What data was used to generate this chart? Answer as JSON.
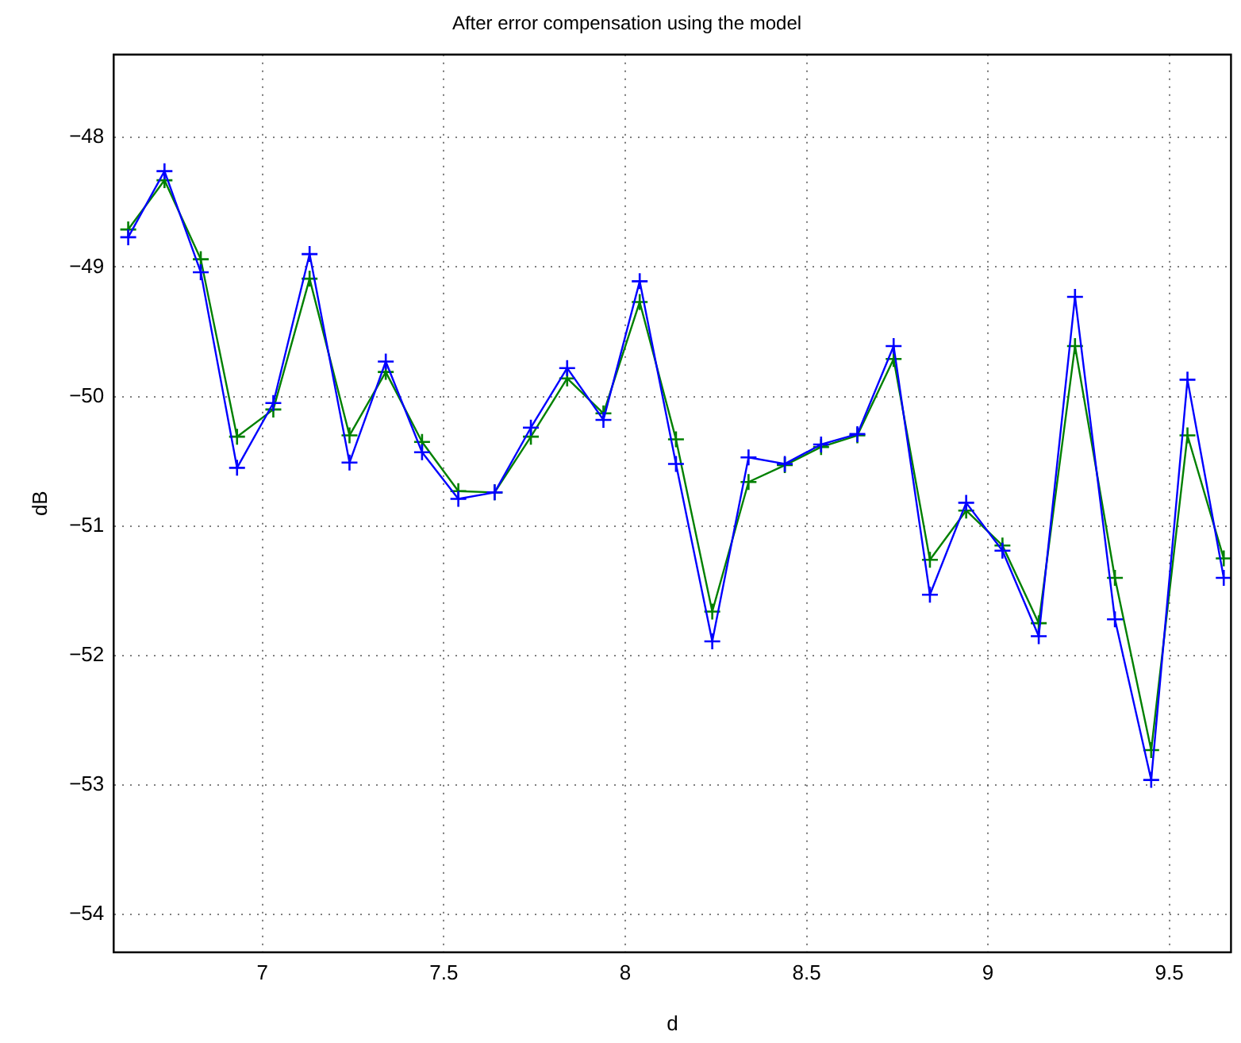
{
  "chart_data": {
    "type": "line",
    "title": "After error compensation using the model",
    "xlabel": "d",
    "ylabel": "dB",
    "x": [
      6.63,
      6.73,
      6.83,
      6.93,
      7.03,
      7.13,
      7.24,
      7.34,
      7.44,
      7.54,
      7.64,
      7.74,
      7.84,
      7.94,
      8.04,
      8.14,
      8.24,
      8.34,
      8.44,
      8.54,
      8.64,
      8.74,
      8.84,
      8.94,
      9.04,
      9.14,
      9.24,
      9.35,
      9.45,
      9.55,
      9.65
    ],
    "series": [
      {
        "color": "#0000ff",
        "marker": "cross",
        "values": [
          -48.77,
          -48.26,
          -49.04,
          -50.55,
          -50.05,
          -48.9,
          -50.51,
          -49.73,
          -50.43,
          -50.79,
          -50.74,
          -50.24,
          -49.78,
          -50.18,
          -49.11,
          -50.52,
          -51.89,
          -50.47,
          -50.52,
          -50.37,
          -50.29,
          -49.61,
          -51.53,
          -50.82,
          -51.19,
          -51.85,
          -49.23,
          -51.72,
          -52.96,
          -49.87,
          -51.4
        ]
      },
      {
        "color": "#008000",
        "marker": "cross",
        "values": [
          -48.71,
          -48.33,
          -48.94,
          -50.31,
          -50.1,
          -49.09,
          -50.3,
          -49.81,
          -50.35,
          -50.73,
          -50.74,
          -50.31,
          -49.86,
          -50.13,
          -49.27,
          -50.33,
          -51.66,
          -50.66,
          -50.53,
          -50.39,
          -50.3,
          -49.71,
          -51.26,
          -50.88,
          -51.15,
          -51.75,
          -49.61,
          -51.4,
          -52.73,
          -50.3,
          -51.25
        ]
      }
    ],
    "xlim": [
      6.59,
      9.67
    ],
    "xticks": [
      7,
      7.5,
      8,
      8.5,
      9,
      9.5
    ],
    "ylim": [
      -54.29,
      -47.36
    ],
    "yticks": [
      -54,
      -53,
      -52,
      -51,
      -50,
      -49,
      -48
    ],
    "grid": true,
    "line_style": "solid"
  }
}
